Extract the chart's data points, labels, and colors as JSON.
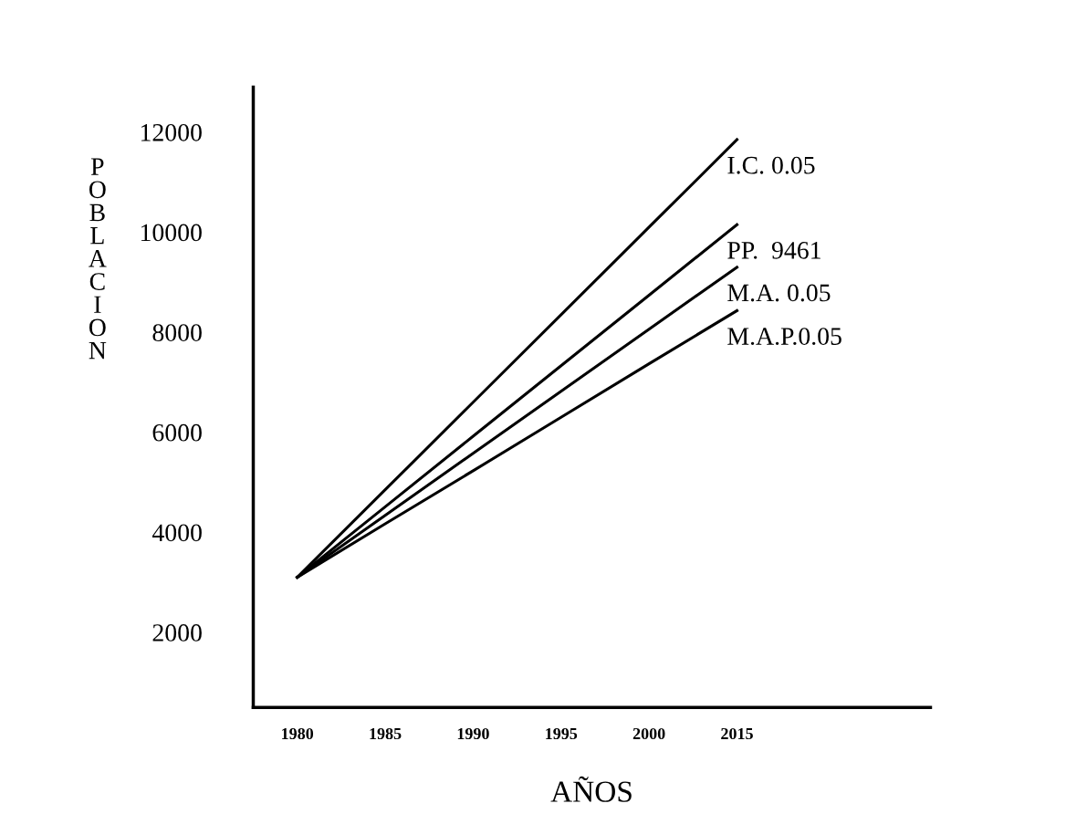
{
  "chart_data": {
    "type": "line",
    "xlabel": "AÑOS",
    "ylabel": "POBLACION",
    "categories": [
      "1980",
      "1985",
      "1990",
      "1995",
      "2000",
      "2015"
    ],
    "series": [
      {
        "name": "I.C. 0.05",
        "color": "#000000",
        "values": [
          3100,
          4850,
          6600,
          8350,
          10100,
          11850
        ]
      },
      {
        "name": "PP.  9461",
        "color": "#000000",
        "values": [
          3100,
          4510,
          5920,
          7330,
          8740,
          10150
        ]
      },
      {
        "name": "M.A. 0.05",
        "color": "#000000",
        "values": [
          3100,
          4340,
          5580,
          6820,
          8060,
          9300
        ]
      },
      {
        "name": "M.A.P.0.05",
        "color": "#000000",
        "values": [
          3100,
          4170,
          5230,
          6300,
          7370,
          8430
        ]
      }
    ],
    "ylim": [
      500,
      12900
    ],
    "yticks": [
      2000,
      4000,
      6000,
      8000,
      10000,
      12000
    ],
    "grid": false,
    "legend": false,
    "marker": "none",
    "line_style": "solid"
  }
}
